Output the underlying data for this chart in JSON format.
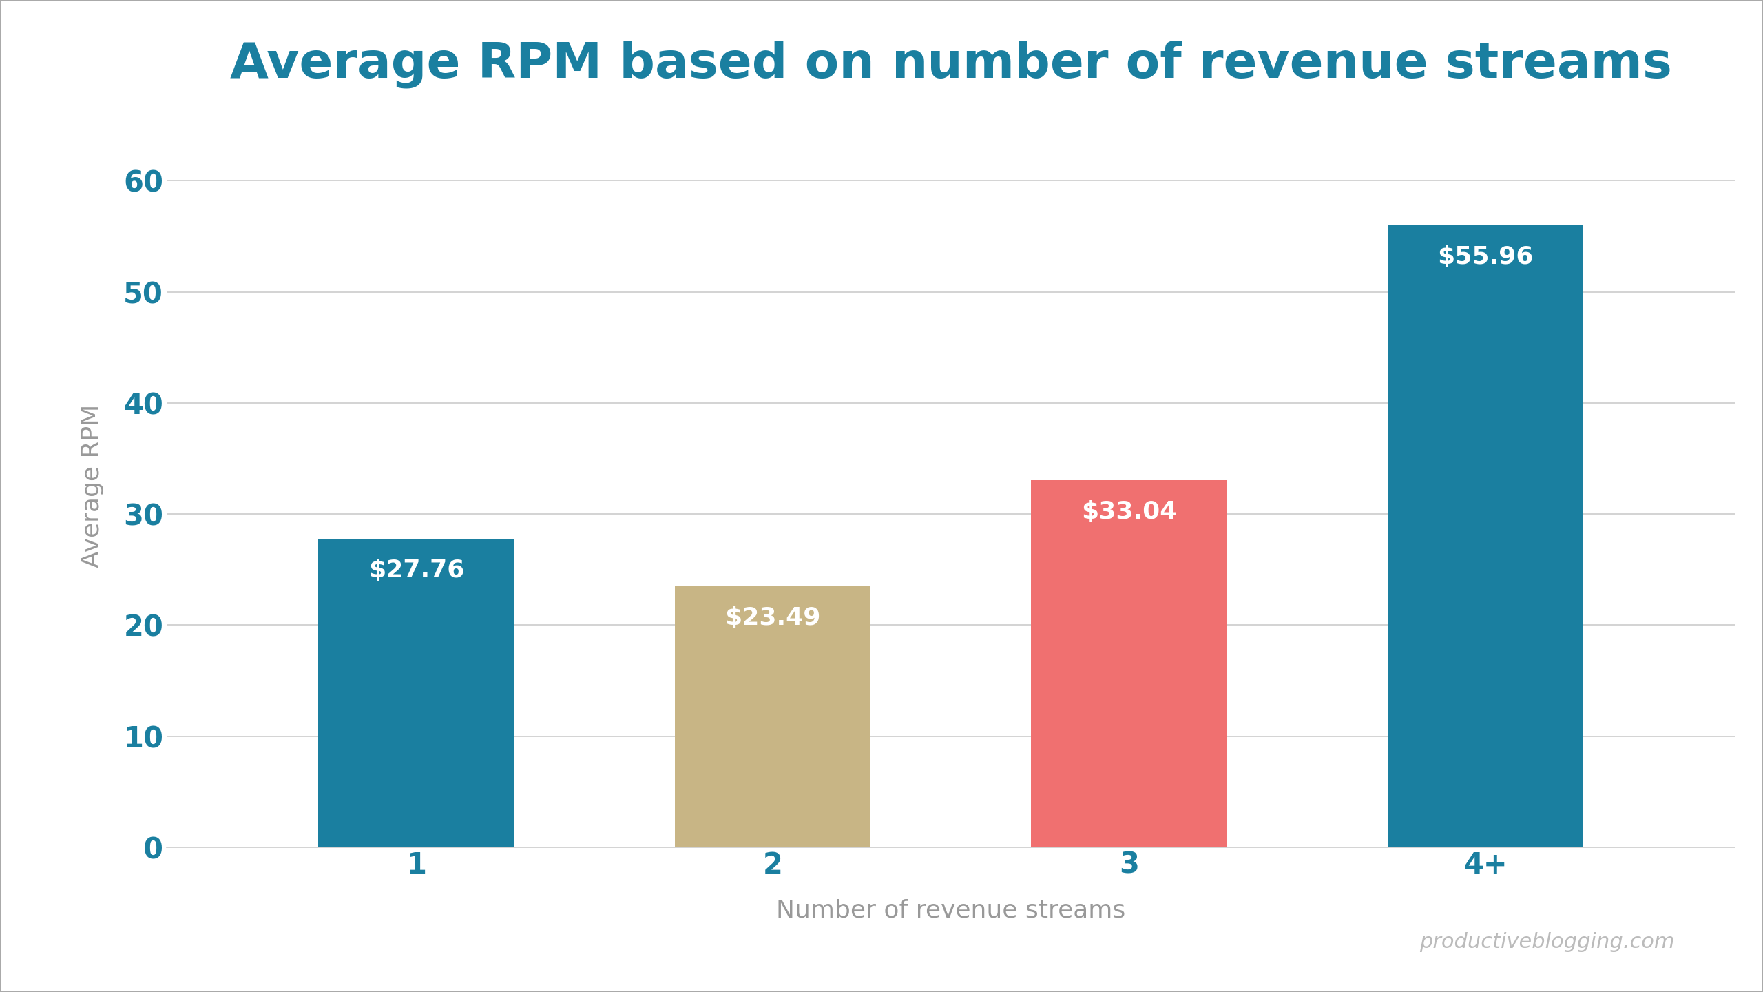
{
  "title": "Average RPM based on number of revenue streams",
  "xlabel": "Number of revenue streams",
  "ylabel": "Average RPM",
  "categories": [
    "1",
    "2",
    "3",
    "4+"
  ],
  "values": [
    27.76,
    23.49,
    33.04,
    55.96
  ],
  "bar_colors": [
    "#1a7fa0",
    "#c8b585",
    "#f07070",
    "#1a7fa0"
  ],
  "bar_labels": [
    "$27.76",
    "$23.49",
    "$33.04",
    "$55.96"
  ],
  "label_color": "#ffffff",
  "title_color": "#1a7fa0",
  "axis_label_color": "#999999",
  "tick_color": "#1a7fa0",
  "grid_color": "#cccccc",
  "background_color": "#ffffff",
  "watermark": "productiveblogging.com",
  "ylim": [
    0,
    65
  ],
  "yticks": [
    0,
    10,
    20,
    30,
    40,
    50,
    60
  ],
  "title_fontsize": 52,
  "axis_label_fontsize": 26,
  "tick_fontsize": 30,
  "bar_label_fontsize": 26,
  "watermark_fontsize": 22,
  "bar_width": 0.55,
  "figure_border_color": "#aaaaaa"
}
